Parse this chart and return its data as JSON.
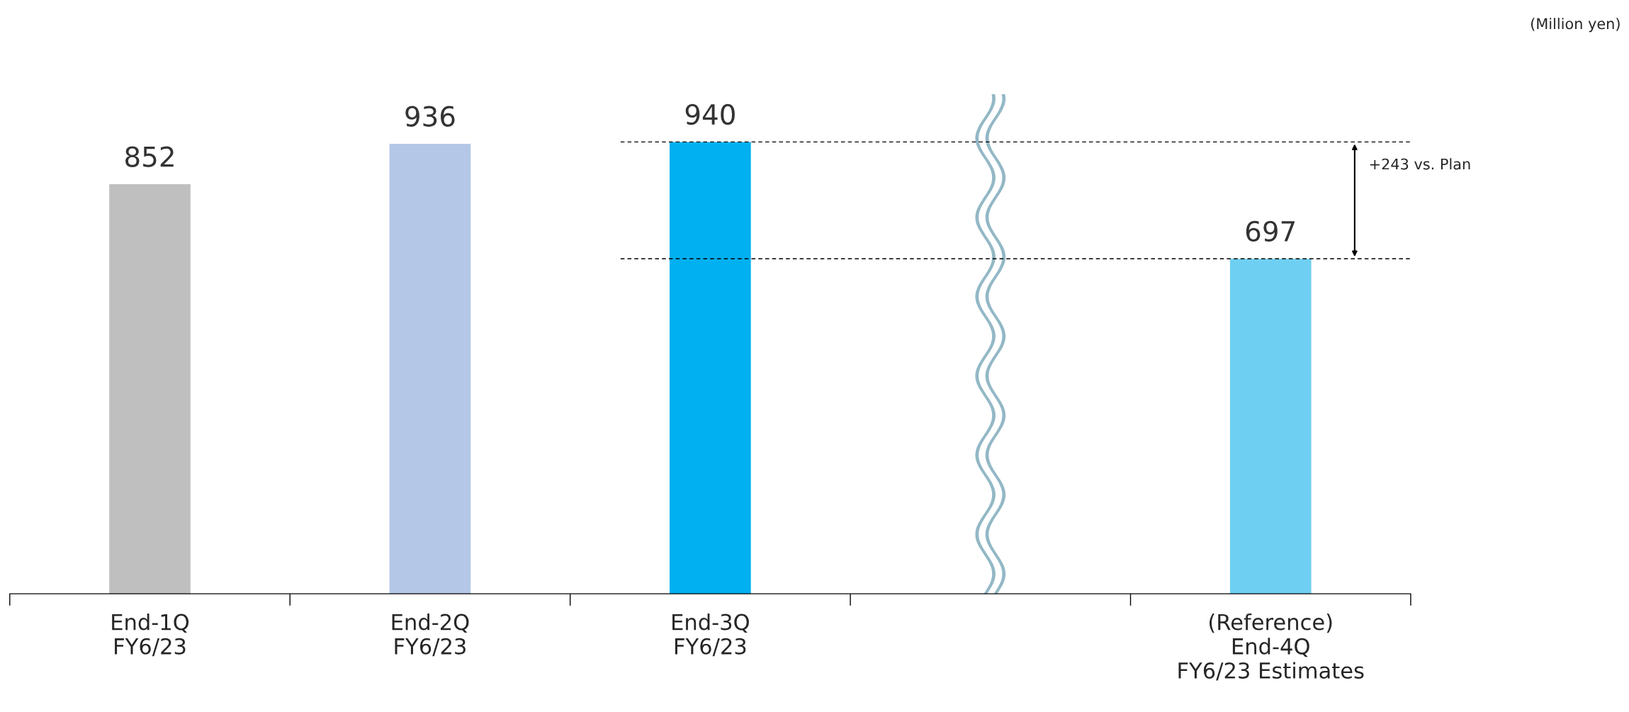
{
  "chart_data": {
    "type": "bar",
    "categories": [
      "End-1Q\nFY6/23",
      "End-2Q\nFY6/23",
      "End-3Q\nFY6/23",
      null,
      "(Reference)\nEnd-4Q\nFY6/23 Estimates"
    ],
    "values": [
      852,
      936,
      940,
      null,
      697
    ],
    "colors": [
      "#bfbfbf",
      "#b4c7e7",
      "#00b0f0",
      "#ffffff",
      "#6fcff2"
    ],
    "tick_labels": "x",
    "data_labels": true,
    "grid": false,
    "legend": false,
    "ref_lines": [
      {
        "axis": "y",
        "value": 940,
        "color": "#000000",
        "line_style": "dashed"
      },
      {
        "axis": "y",
        "value": 697,
        "color": "#000000",
        "line_style": "dashed"
      }
    ],
    "annotations": [
      "+243 vs. Plan",
      "(Million yen)"
    ]
  }
}
